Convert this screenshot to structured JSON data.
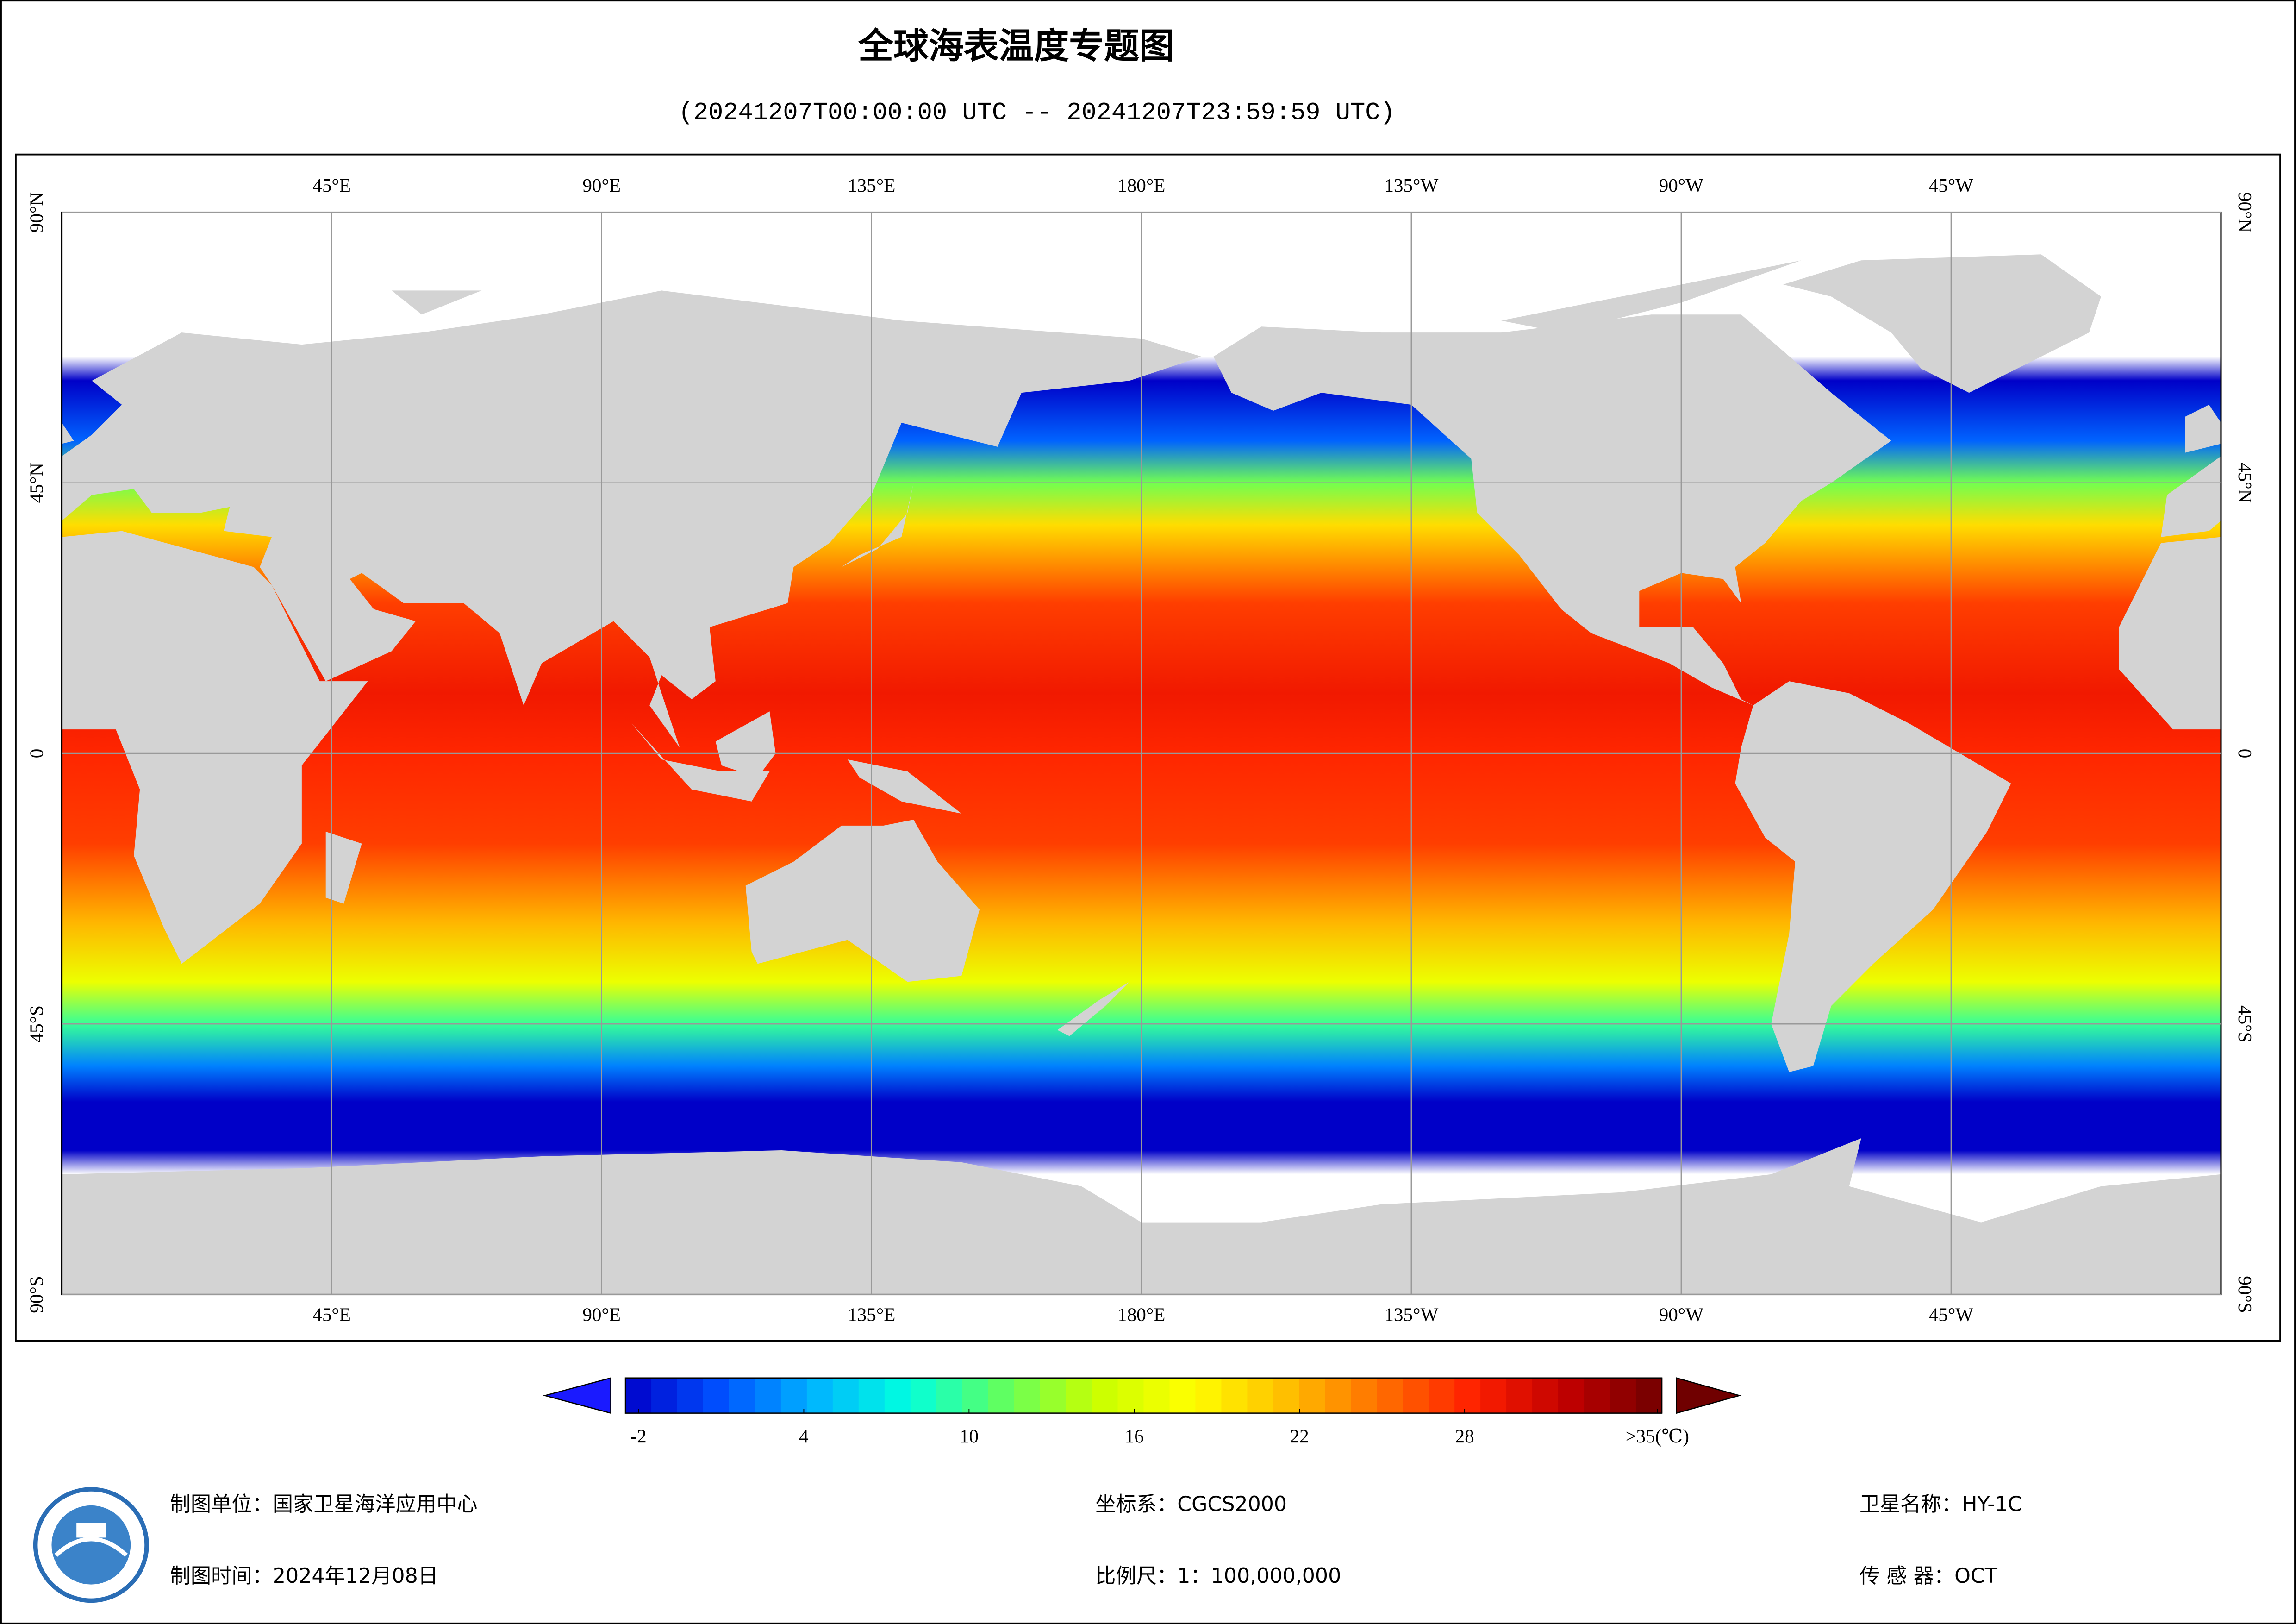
{
  "header": {
    "title": "全球海表温度专题图",
    "subtitle": "(20241207T00:00:00 UTC -- 20241207T23:59:59 UTC)"
  },
  "map": {
    "lon_ticks": [
      {
        "value": 45,
        "label": "45°E"
      },
      {
        "value": 90,
        "label": "90°E"
      },
      {
        "value": 135,
        "label": "135°E"
      },
      {
        "value": 180,
        "label": "180°E"
      },
      {
        "value": 225,
        "label": "135°W"
      },
      {
        "value": 270,
        "label": "90°W"
      },
      {
        "value": 315,
        "label": "45°W"
      }
    ],
    "lat_ticks": [
      {
        "value": 90,
        "label": "90°N"
      },
      {
        "value": 45,
        "label": "45°N"
      },
      0,
      {
        "value": -45,
        "label": "45°S"
      },
      {
        "value": -90,
        "label": "90°S"
      }
    ],
    "xlim": [
      0,
      360
    ],
    "ylim": [
      -90,
      90
    ],
    "grid": true,
    "land_color": "#d3d3d3"
  },
  "colorbar": {
    "lim": [
      -2,
      35
    ],
    "ticks": [
      -2,
      4,
      10,
      16,
      22,
      28,
      {
        "value": 35,
        "label": "≥35(℃)"
      }
    ],
    "colormap": [
      "#0000c8",
      "#0050ff",
      "#00b4ff",
      "#00ffe0",
      "#60ff60",
      "#c8ff00",
      "#ffff00",
      "#ffc000",
      "#ff7000",
      "#ff2000",
      "#c00000",
      "#700000"
    ]
  },
  "footer": {
    "unit": "制图单位：国家卫星海洋应用中心",
    "date": "制图时间：2024年12月08日",
    "crs": "坐标系：CGCS2000",
    "scale": "比例尺：1：100,000,000",
    "satellite": "卫星名称：HY-1C",
    "sensor": "传 感 器：OCT"
  }
}
